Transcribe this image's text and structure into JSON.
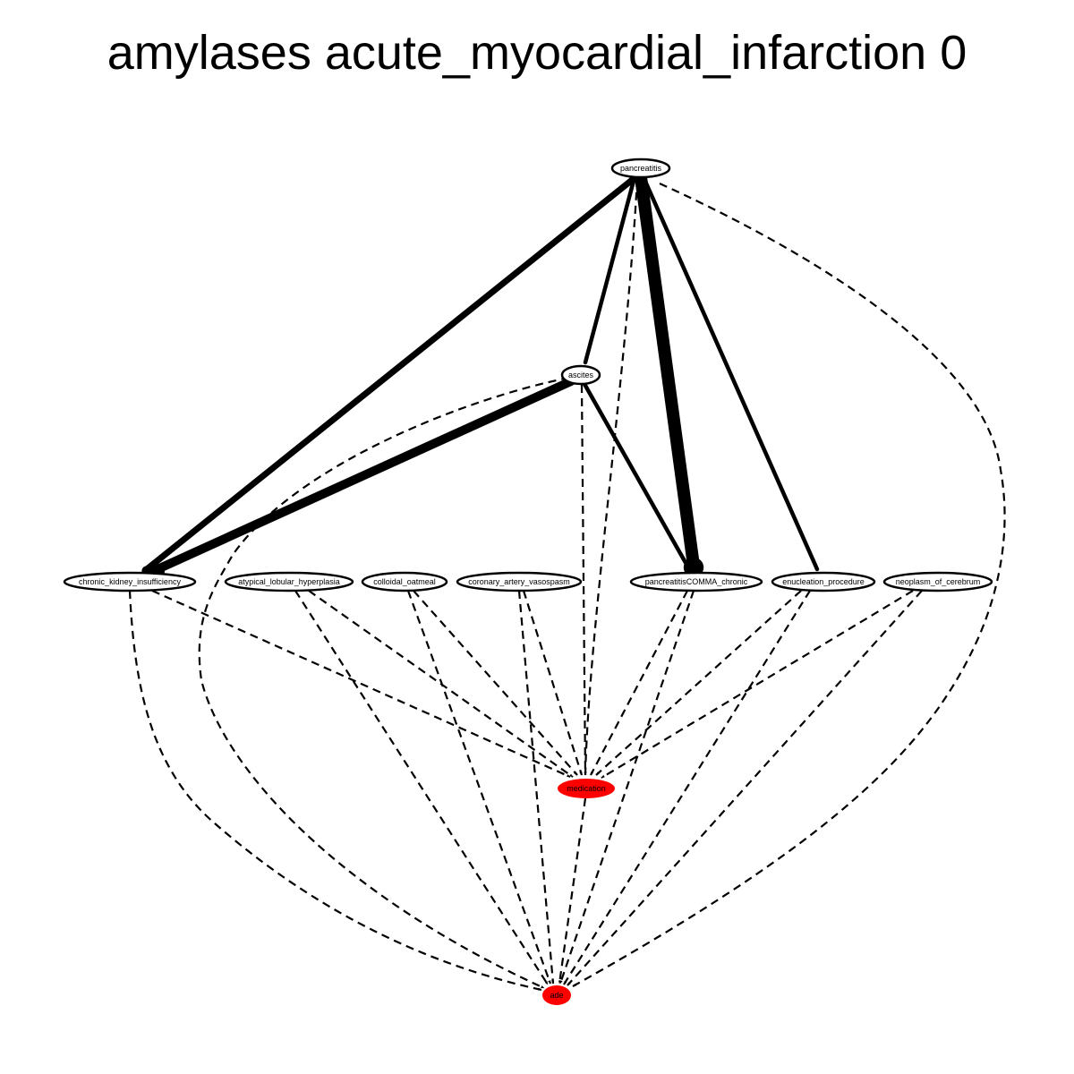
{
  "title": "amylases acute_myocardial_infarction 0",
  "colors": {
    "background": "#ffffff",
    "edge": "#000000",
    "outcome_node_fill": "#ff0000",
    "default_node_fill": "#ffffff"
  },
  "nodes": [
    {
      "id": "pancreatitis",
      "label": "pancreatitis",
      "kind": "default"
    },
    {
      "id": "ascites",
      "label": "ascites",
      "kind": "default"
    },
    {
      "id": "chronic_kidney_insufficiency",
      "label": "chronic_kidney_insufficiency",
      "kind": "default"
    },
    {
      "id": "atypical_lobular_hyperplasia",
      "label": "atypical_lobular_hyperplasia",
      "kind": "default"
    },
    {
      "id": "colloidal_oatmeal",
      "label": "colloidal_oatmeal",
      "kind": "default"
    },
    {
      "id": "coronary_artery_vasospasm",
      "label": "coronary_artery_vasospasm",
      "kind": "default"
    },
    {
      "id": "pancreatitisCOMMA_chronic",
      "label": "pancreatitisCOMMA_chronic",
      "kind": "default"
    },
    {
      "id": "enucleation_procedure",
      "label": "enucleation_procedure",
      "kind": "default"
    },
    {
      "id": "neoplasm_of_cerebrum",
      "label": "neoplasm_of_cerebrum",
      "kind": "default"
    },
    {
      "id": "medication",
      "label": "medication",
      "kind": "outcome"
    },
    {
      "id": "ade",
      "label": "ade",
      "kind": "outcome"
    }
  ],
  "edges": [
    {
      "from": "pancreatitis",
      "to": "chronic_kidney_insufficiency",
      "style": "solid",
      "weight": 4
    },
    {
      "from": "pancreatitis",
      "to": "ascites",
      "style": "solid",
      "weight": 2
    },
    {
      "from": "pancreatitis",
      "to": "pancreatitisCOMMA_chronic",
      "style": "solid",
      "weight": 8
    },
    {
      "from": "pancreatitis",
      "to": "enucleation_procedure",
      "style": "solid",
      "weight": 2
    },
    {
      "from": "pancreatitis",
      "to": "medication",
      "style": "dashed",
      "weight": 1
    },
    {
      "from": "pancreatitis",
      "to": "ade",
      "style": "dashed",
      "weight": 1
    },
    {
      "from": "ascites",
      "to": "chronic_kidney_insufficiency",
      "style": "solid",
      "weight": 6
    },
    {
      "from": "ascites",
      "to": "pancreatitisCOMMA_chronic",
      "style": "solid",
      "weight": 2
    },
    {
      "from": "ascites",
      "to": "medication",
      "style": "dashed",
      "weight": 1
    },
    {
      "from": "ascites",
      "to": "ade",
      "style": "dashed",
      "weight": 1
    },
    {
      "from": "chronic_kidney_insufficiency",
      "to": "medication",
      "style": "dashed",
      "weight": 1
    },
    {
      "from": "chronic_kidney_insufficiency",
      "to": "ade",
      "style": "dashed",
      "weight": 1
    },
    {
      "from": "atypical_lobular_hyperplasia",
      "to": "medication",
      "style": "dashed",
      "weight": 1
    },
    {
      "from": "atypical_lobular_hyperplasia",
      "to": "ade",
      "style": "dashed",
      "weight": 1
    },
    {
      "from": "colloidal_oatmeal",
      "to": "medication",
      "style": "dashed",
      "weight": 1
    },
    {
      "from": "colloidal_oatmeal",
      "to": "ade",
      "style": "dashed",
      "weight": 1
    },
    {
      "from": "coronary_artery_vasospasm",
      "to": "medication",
      "style": "dashed",
      "weight": 1
    },
    {
      "from": "coronary_artery_vasospasm",
      "to": "ade",
      "style": "dashed",
      "weight": 1
    },
    {
      "from": "pancreatitisCOMMA_chronic",
      "to": "medication",
      "style": "dashed",
      "weight": 1
    },
    {
      "from": "pancreatitisCOMMA_chronic",
      "to": "ade",
      "style": "dashed",
      "weight": 1
    },
    {
      "from": "enucleation_procedure",
      "to": "medication",
      "style": "dashed",
      "weight": 1
    },
    {
      "from": "enucleation_procedure",
      "to": "ade",
      "style": "dashed",
      "weight": 1
    },
    {
      "from": "neoplasm_of_cerebrum",
      "to": "medication",
      "style": "dashed",
      "weight": 1
    },
    {
      "from": "neoplasm_of_cerebrum",
      "to": "ade",
      "style": "dashed",
      "weight": 1
    },
    {
      "from": "medication",
      "to": "ade",
      "style": "dashed",
      "weight": 1
    }
  ]
}
